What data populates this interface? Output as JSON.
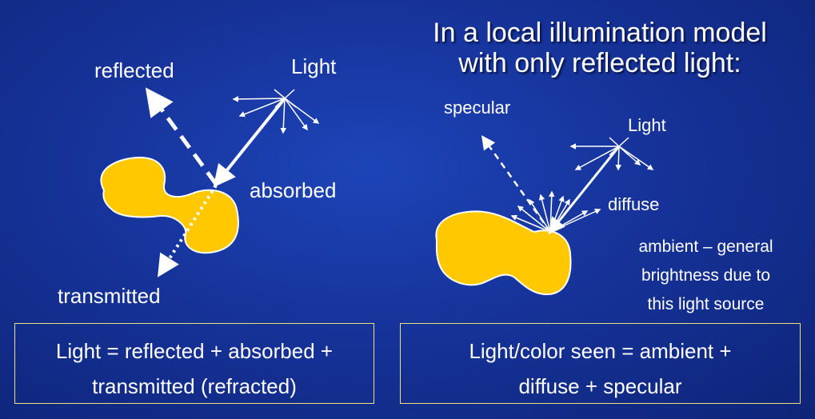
{
  "left": {
    "labels": {
      "reflected": "reflected",
      "light": "Light",
      "absorbed": "absorbed",
      "transmitted": "transmitted"
    },
    "equation_box": {
      "line1": "Light = reflected + absorbed +",
      "line2": "transmitted (refracted)"
    }
  },
  "right": {
    "title": {
      "line1": "In a local illumination model",
      "line2": "with only reflected light:"
    },
    "labels": {
      "specular": "specular",
      "light": "Light",
      "diffuse": "diffuse"
    },
    "ambient_note": {
      "line1": "ambient – general",
      "line2": "brightness due to",
      "line3": "this light source"
    },
    "equation_box": {
      "line1": "Light/color seen = ambient +",
      "line2": "diffuse + specular"
    }
  },
  "colors": {
    "background": "#1a3ca8",
    "object_fill": "#ffc800",
    "box_border": "#e8e27a",
    "arrow": "#ffffff"
  }
}
